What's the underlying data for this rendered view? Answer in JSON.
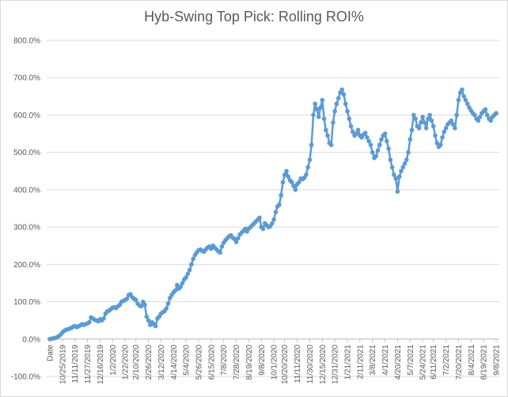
{
  "chart_data": {
    "type": "line",
    "title": "Hyb-Swing Top Pick: Rolling ROI%",
    "xlabel": "",
    "ylabel": "",
    "ylim": [
      -100,
      800
    ],
    "y_ticks": [
      "-100.0%",
      "0.0%",
      "100.0%",
      "200.0%",
      "300.0%",
      "400.0%",
      "500.0%",
      "600.0%",
      "700.0%",
      "800.0%"
    ],
    "x_ticks": [
      "Date",
      "10/25/2019",
      "11/11/2019",
      "11/27/2019",
      "12/16/2019",
      "1/2/2020",
      "1/22/2020",
      "2/10/2020",
      "2/26/2020",
      "3/12/2020",
      "4/14/2020",
      "5/4/2020",
      "5/26/2020",
      "6/15/2020",
      "7/8/2020",
      "7/28/2020",
      "8/19/2020",
      "9/8/2020",
      "10/1/2020",
      "10/20/2020",
      "11/11/2020",
      "11/30/2020",
      "12/15/2020",
      "12/31/2020",
      "1/21/2021",
      "2/11/2021",
      "3/8/2021",
      "4/1/2021",
      "4/20/2021",
      "5/7/2021",
      "5/24/2021",
      "6/11/2021",
      "7/2/2021",
      "7/20/2021",
      "8/4/2021",
      "8/19/2021",
      "9/8/2021"
    ],
    "grid": true,
    "legend": "none",
    "series": [
      {
        "color": "#5b9bd5",
        "values": [
          0,
          1,
          2,
          3,
          5,
          8,
          12,
          18,
          22,
          25,
          26,
          28,
          30,
          33,
          35,
          32,
          34,
          37,
          40,
          38,
          40,
          42,
          45,
          58,
          55,
          52,
          50,
          48,
          53,
          50,
          55,
          68,
          74,
          76,
          80,
          84,
          85,
          83,
          88,
          92,
          100,
          102,
          105,
          108,
          118,
          120,
          112,
          108,
          105,
          95,
          90,
          88,
          100,
          92,
          60,
          50,
          38,
          45,
          40,
          35,
          55,
          60,
          68,
          72,
          75,
          82,
          95,
          110,
          118,
          125,
          130,
          145,
          135,
          140,
          150,
          160,
          165,
          175,
          185,
          200,
          215,
          225,
          232,
          238,
          240,
          236,
          234,
          240,
          245,
          248,
          242,
          250,
          245,
          240,
          235,
          232,
          248,
          258,
          265,
          270,
          275,
          278,
          272,
          268,
          260,
          270,
          280,
          285,
          290,
          295,
          288,
          296,
          300,
          305,
          310,
          315,
          320,
          325,
          300,
          295,
          310,
          305,
          300,
          302,
          310,
          320,
          340,
          355,
          360,
          385,
          420,
          440,
          450,
          435,
          425,
          420,
          410,
          400,
          415,
          420,
          430,
          428,
          432,
          440,
          460,
          480,
          520,
          600,
          630,
          615,
          595,
          620,
          640,
          590,
          560,
          545,
          525,
          520,
          580,
          610,
          630,
          645,
          660,
          668,
          655,
          630,
          610,
          590,
          570,
          555,
          545,
          550,
          560,
          545,
          540,
          548,
          552,
          540,
          530,
          520,
          500,
          485,
          490,
          505,
          520,
          535,
          545,
          550,
          530,
          510,
          480,
          460,
          440,
          430,
          395,
          435,
          450,
          460,
          470,
          480,
          500,
          535,
          560,
          600,
          590,
          570,
          565,
          580,
          595,
          580,
          565,
          590,
          600,
          585,
          570,
          545,
          525,
          515,
          520,
          540,
          555,
          565,
          575,
          580,
          585,
          575,
          565,
          600,
          640,
          660,
          668,
          650,
          640,
          630,
          620,
          612,
          605,
          600,
          590,
          585,
          595,
          605,
          610,
          615,
          600,
          590,
          585,
          595,
          600,
          605
        ]
      }
    ]
  }
}
